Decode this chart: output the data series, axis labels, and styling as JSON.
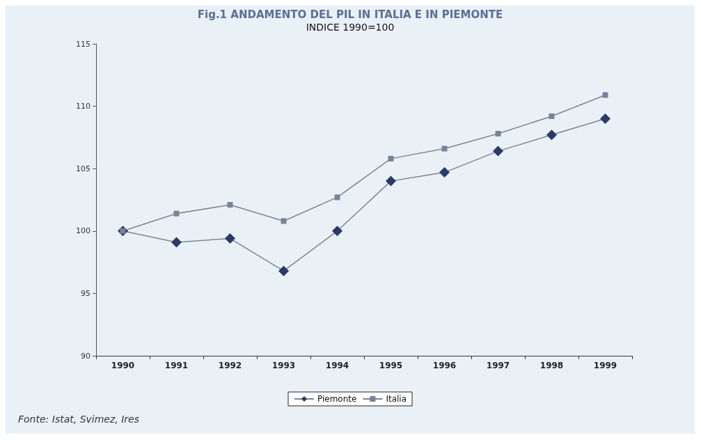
{
  "chart_data": {
    "type": "line",
    "title": "Fig.1 ANDAMENTO DEL PIL IN ITALIA E IN PIEMONTE",
    "subtitle": "INDICE 1990=100",
    "categories": [
      "1990",
      "1991",
      "1992",
      "1993",
      "1994",
      "1995",
      "1996",
      "1997",
      "1998",
      "1999"
    ],
    "series": [
      {
        "name": "Piemonte",
        "color": "#2b3a67",
        "marker": "diamond",
        "values": [
          100,
          99.1,
          99.4,
          96.8,
          100,
          104.0,
          104.7,
          106.4,
          107.7,
          109.0
        ]
      },
      {
        "name": "Italia",
        "color": "#76839a",
        "marker": "square",
        "values": [
          100,
          101.4,
          102.1,
          100.8,
          102.7,
          105.8,
          106.6,
          107.8,
          109.2,
          110.9
        ]
      }
    ],
    "ylim": [
      90,
      115
    ],
    "yticks": [
      90,
      95,
      100,
      105,
      110,
      115
    ],
    "grid": false,
    "legend": "bottom",
    "annotations": [
      "Fonte: Istat, Svimez, Ires"
    ]
  }
}
